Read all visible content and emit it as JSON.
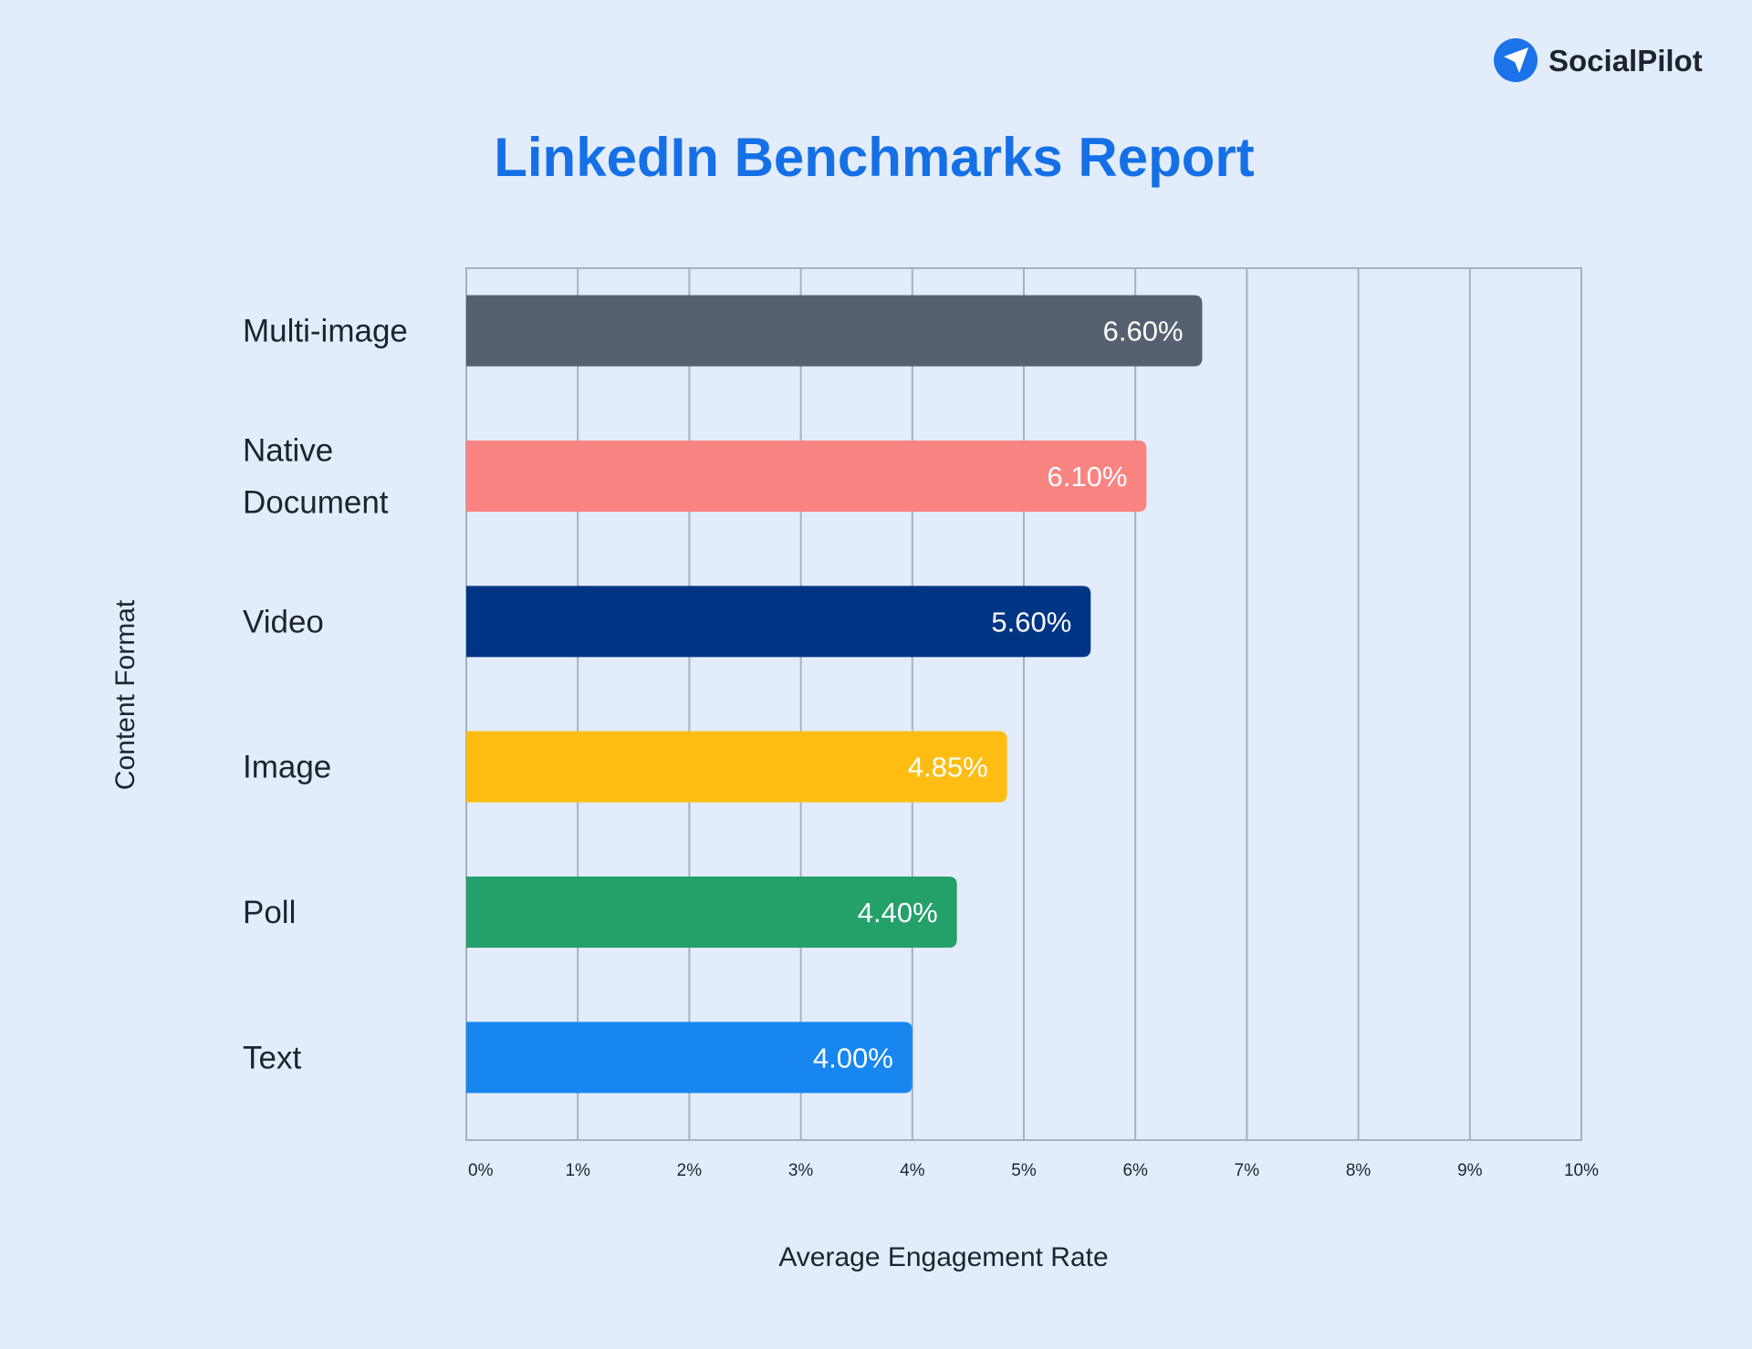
{
  "brand": {
    "name": "SocialPilot",
    "icon": "paper-plane-icon",
    "color": "#1a73e8"
  },
  "chart_data": {
    "type": "bar",
    "orientation": "horizontal",
    "title": "LinkedIn Benchmarks Report",
    "xlabel": "Average Engagement Rate",
    "ylabel": "Content Format",
    "categories": [
      "Multi-image",
      "Native Document",
      "Video",
      "Image",
      "Poll",
      "Text"
    ],
    "values": [
      6.6,
      6.1,
      5.6,
      4.85,
      4.4,
      4.0
    ],
    "value_labels": [
      "6.60%",
      "6.10%",
      "5.60%",
      "4.85%",
      "4.40%",
      "4.00%"
    ],
    "colors": [
      "#556170",
      "#f98482",
      "#003585",
      "#ffbd14",
      "#24a06b",
      "#1787ef"
    ],
    "xlim": [
      0,
      10
    ],
    "xticks": [
      0,
      1,
      2,
      3,
      4,
      5,
      6,
      7,
      8,
      9,
      10
    ],
    "xtick_labels": [
      "0%",
      "1%",
      "2%",
      "3%",
      "4%",
      "5%",
      "6%",
      "7%",
      "8%",
      "9%",
      "10%"
    ],
    "grid": true,
    "title_color": "#1570e6",
    "legend": "none"
  }
}
